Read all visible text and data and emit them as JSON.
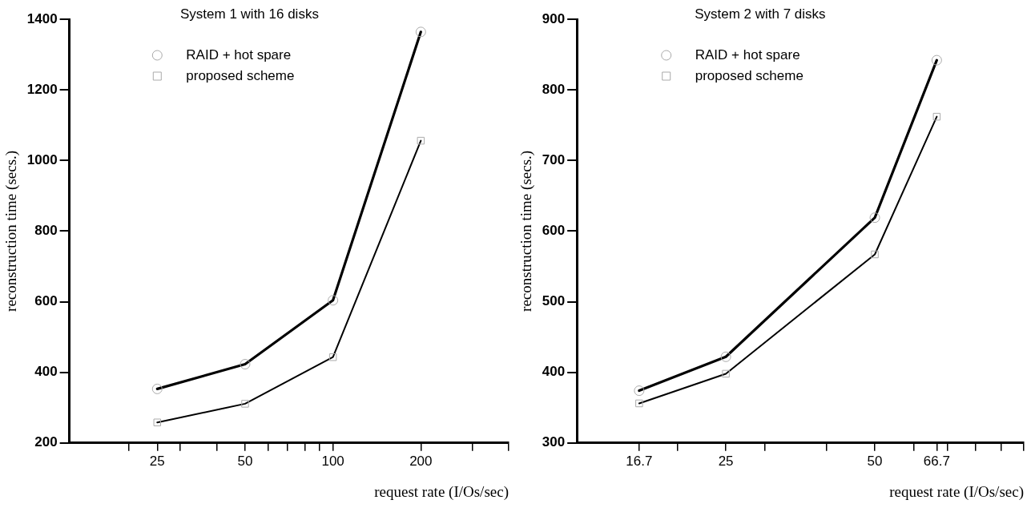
{
  "chart_data": [
    {
      "type": "line",
      "title": "System 1 with 16 disks",
      "xlabel": "request rate (I/Os/sec)",
      "ylabel": "reconstruction time (secs.)",
      "log": "x",
      "x": [
        25,
        50,
        100,
        200
      ],
      "series": [
        {
          "name": "RAID + hot spare",
          "color": "#000000",
          "marker": "circle",
          "values": [
            353,
            423,
            604,
            1364
          ]
        },
        {
          "name": "proposed scheme",
          "color": "#000000",
          "marker": "square",
          "values": [
            258,
            311,
            443,
            1056
          ]
        }
      ],
      "xlim": [
        12.5,
        400
      ],
      "xticks": [
        {
          "value": 20,
          "label": null
        },
        {
          "value": 25,
          "label": "25"
        },
        {
          "value": 30,
          "label": null
        },
        {
          "value": 40,
          "label": null
        },
        50,
        {
          "value": 60,
          "label": null
        },
        {
          "value": 70,
          "label": null
        },
        {
          "value": 80,
          "label": null
        },
        {
          "value": 90,
          "label": null
        },
        100,
        200,
        {
          "value": 300,
          "label": null
        },
        {
          "value": 400,
          "label": null
        }
      ],
      "ylim": [
        200,
        1400
      ],
      "yticks": [
        200,
        400,
        600,
        800,
        1000,
        1200,
        1400
      ],
      "legend": "top left",
      "grid": false
    },
    {
      "type": "line",
      "title": "System 2 with 7 disks",
      "xlabel": "request rate (I/Os/sec)",
      "ylabel": "reconstruction time (secs.)",
      "log": "x",
      "x": [
        16.7,
        25,
        50,
        66.7
      ],
      "series": [
        {
          "name": "RAID + hot spare",
          "color": "#000000",
          "marker": "circle",
          "values": [
            374,
            422,
            619,
            842
          ]
        },
        {
          "name": "proposed scheme",
          "color": "#000000",
          "marker": "square",
          "values": [
            356,
            398,
            567,
            762
          ]
        }
      ],
      "xlim": [
        12.5,
        100
      ],
      "xticks": [
        16.7,
        {
          "value": 20,
          "label": null
        },
        25,
        {
          "value": 30,
          "label": null
        },
        {
          "value": 40,
          "label": null
        },
        50,
        {
          "value": 60,
          "label": null
        },
        66.7,
        {
          "value": 70,
          "label": null
        },
        {
          "value": 80,
          "label": null
        },
        {
          "value": 90,
          "label": null
        },
        {
          "value": 100,
          "label": null
        }
      ],
      "ylim": [
        300,
        900
      ],
      "yticks": [
        300,
        400,
        500,
        600,
        700,
        800,
        900
      ],
      "legend": "top left",
      "grid": false
    }
  ]
}
